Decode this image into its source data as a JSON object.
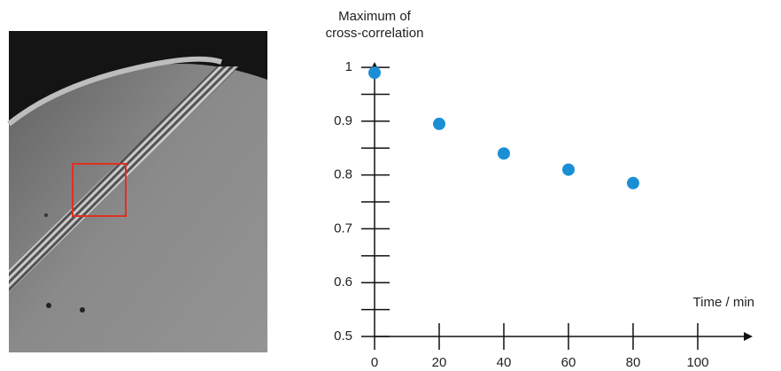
{
  "chart_data": {
    "type": "scatter",
    "ylabel": "Maximum of cross-correlation",
    "xlabel": "Time / min",
    "x": [
      0,
      20,
      40,
      60,
      80
    ],
    "values": [
      0.99,
      0.895,
      0.84,
      0.81,
      0.785
    ],
    "color": "#1b8fd6",
    "xlim": [
      0,
      117
    ],
    "ylim": [
      0.5,
      1.01
    ],
    "xticks": [
      0,
      20,
      40,
      60,
      80,
      100
    ],
    "yticks": [
      0.5,
      0.6,
      0.7,
      0.8,
      0.9,
      1
    ],
    "yminorticks": [
      0.55,
      0.65,
      0.75,
      0.85,
      0.95
    ]
  }
}
